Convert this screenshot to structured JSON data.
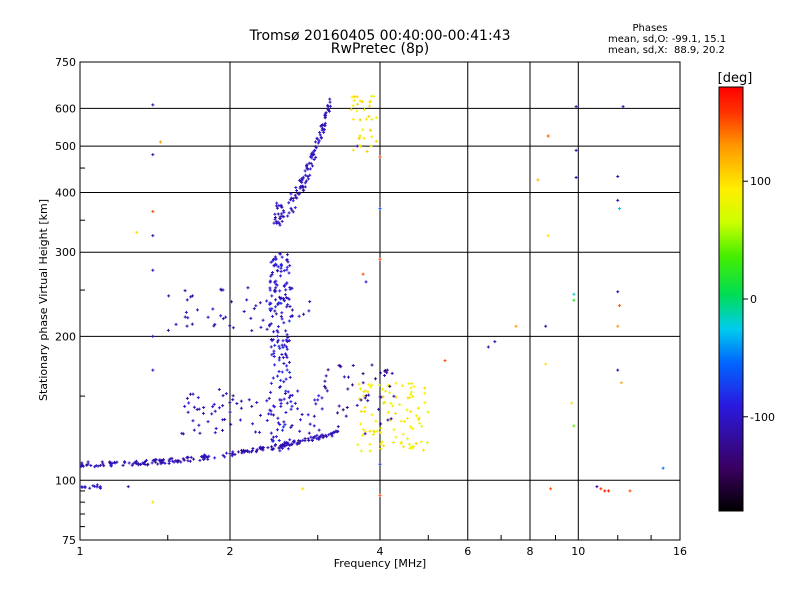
{
  "chart_data": {
    "type": "scatter",
    "title": "Tromsø 20160405 00:40:00-00:41:43",
    "subtitle": "RwPretec (8p)",
    "xlabel": "Frequency [MHz]",
    "ylabel": "Stationary phase Virtual Height [km]",
    "x_scale": "log",
    "y_scale": "log",
    "xlim": [
      1,
      16
    ],
    "ylim": [
      75,
      750
    ],
    "x_ticks": [
      "1",
      "2",
      "4",
      "6",
      "8",
      "10",
      "16"
    ],
    "y_ticks": [
      "75",
      "100",
      "200",
      "300",
      "400",
      "500",
      "600",
      "750"
    ],
    "grid": true,
    "stats": {
      "heading": "Phases",
      "line1": "mean, sd,O: -99.1, 15.1",
      "line2": "mean, sd,X:  88.9, 20.2"
    },
    "colorbar": {
      "label": "[deg]",
      "range": [
        -180,
        180
      ],
      "ticks": [
        "100",
        "0",
        "-100"
      ],
      "tick_values": [
        100,
        0,
        -100
      ]
    },
    "phase_encoding": "color",
    "clusters": [
      {
        "name": "o-trace-low",
        "x_from": 1.0,
        "x_to": 3.3,
        "h_from": 108,
        "h_to": 126,
        "phase": -110,
        "count": 220
      },
      {
        "name": "o-trace-upper",
        "x_from": 1.6,
        "x_to": 3.2,
        "h_from": 125,
        "h_to": 155,
        "phase": -105,
        "count": 90
      },
      {
        "name": "spread-column",
        "x_from": 2.4,
        "x_to": 2.65,
        "h_from": 115,
        "h_to": 300,
        "phase": -95,
        "count": 170
      },
      {
        "name": "e-trace-band",
        "x_from": 1.5,
        "x_to": 2.9,
        "h_from": 205,
        "h_to": 255,
        "phase": -110,
        "count": 55
      },
      {
        "name": "f-trace",
        "x_from": 2.45,
        "x_to": 3.2,
        "h_from": 360,
        "h_to": 630,
        "phase": -105,
        "count": 130
      },
      {
        "name": "x-trace-yellow",
        "x_from": 3.6,
        "x_to": 5.0,
        "h_from": 115,
        "h_to": 160,
        "phase": 90,
        "count": 95
      },
      {
        "name": "x-trace-f",
        "x_from": 3.5,
        "x_to": 3.95,
        "h_from": 480,
        "h_to": 640,
        "phase": 95,
        "count": 35
      },
      {
        "name": "low-blue",
        "x_from": 1.0,
        "x_to": 1.1,
        "h_from": 96,
        "h_to": 98,
        "phase": -100,
        "count": 12
      },
      {
        "name": "scatter-mid",
        "x_from": 3.0,
        "x_to": 4.3,
        "h_from": 125,
        "h_to": 175,
        "phase": -120,
        "count": 45
      }
    ],
    "isolated_points": [
      {
        "x": 1.4,
        "h": 610,
        "phase": -110
      },
      {
        "x": 1.4,
        "h": 480,
        "phase": -110
      },
      {
        "x": 1.4,
        "h": 365,
        "phase": 150
      },
      {
        "x": 1.4,
        "h": 325,
        "phase": -110
      },
      {
        "x": 1.4,
        "h": 275,
        "phase": -100
      },
      {
        "x": 1.4,
        "h": 200,
        "phase": -100
      },
      {
        "x": 1.4,
        "h": 170,
        "phase": -100
      },
      {
        "x": 1.3,
        "h": 330,
        "phase": 100
      },
      {
        "x": 1.45,
        "h": 510,
        "phase": 130
      },
      {
        "x": 1.4,
        "h": 90,
        "phase": 100
      },
      {
        "x": 1.25,
        "h": 97,
        "phase": -110
      },
      {
        "x": 4.0,
        "h": 370,
        "phase": -60
      },
      {
        "x": 4.0,
        "h": 290,
        "phase": 150
      },
      {
        "x": 4.0,
        "h": 475,
        "phase": 150
      },
      {
        "x": 4.0,
        "h": 108,
        "phase": -80
      },
      {
        "x": 4.0,
        "h": 93,
        "phase": 150
      },
      {
        "x": 3.7,
        "h": 270,
        "phase": 150
      },
      {
        "x": 3.75,
        "h": 260,
        "phase": -100
      },
      {
        "x": 6.6,
        "h": 190,
        "phase": -110
      },
      {
        "x": 6.8,
        "h": 195,
        "phase": -110
      },
      {
        "x": 7.5,
        "h": 210,
        "phase": 130
      },
      {
        "x": 8.3,
        "h": 425,
        "phase": 120
      },
      {
        "x": 8.7,
        "h": 525,
        "phase": 150
      },
      {
        "x": 8.7,
        "h": 325,
        "phase": 100
      },
      {
        "x": 8.6,
        "h": 210,
        "phase": -110
      },
      {
        "x": 8.6,
        "h": 175,
        "phase": 100
      },
      {
        "x": 8.8,
        "h": 96,
        "phase": 150
      },
      {
        "x": 9.8,
        "h": 245,
        "phase": -20
      },
      {
        "x": 9.8,
        "h": 238,
        "phase": 20
      },
      {
        "x": 9.9,
        "h": 605,
        "phase": -110
      },
      {
        "x": 9.9,
        "h": 490,
        "phase": -110
      },
      {
        "x": 9.9,
        "h": 430,
        "phase": -110
      },
      {
        "x": 9.8,
        "h": 130,
        "phase": 40
      },
      {
        "x": 9.7,
        "h": 145,
        "phase": 100
      },
      {
        "x": 11.1,
        "h": 96,
        "phase": 160
      },
      {
        "x": 11.3,
        "h": 95,
        "phase": 170
      },
      {
        "x": 11.5,
        "h": 95,
        "phase": 165
      },
      {
        "x": 10.9,
        "h": 97,
        "phase": -110
      },
      {
        "x": 12.0,
        "h": 432,
        "phase": -110
      },
      {
        "x": 12.0,
        "h": 385,
        "phase": -110
      },
      {
        "x": 12.1,
        "h": 370,
        "phase": -30
      },
      {
        "x": 12.0,
        "h": 248,
        "phase": -110
      },
      {
        "x": 12.1,
        "h": 232,
        "phase": 150
      },
      {
        "x": 12.0,
        "h": 210,
        "phase": 130
      },
      {
        "x": 12.0,
        "h": 170,
        "phase": -110
      },
      {
        "x": 12.2,
        "h": 160,
        "phase": 120
      },
      {
        "x": 12.3,
        "h": 605,
        "phase": -110
      },
      {
        "x": 12.7,
        "h": 95,
        "phase": 150
      },
      {
        "x": 14.8,
        "h": 106,
        "phase": -50
      },
      {
        "x": 2.8,
        "h": 96,
        "phase": 100
      },
      {
        "x": 3.6,
        "h": 500,
        "phase": -100
      },
      {
        "x": 5.4,
        "h": 178,
        "phase": 150
      }
    ]
  }
}
